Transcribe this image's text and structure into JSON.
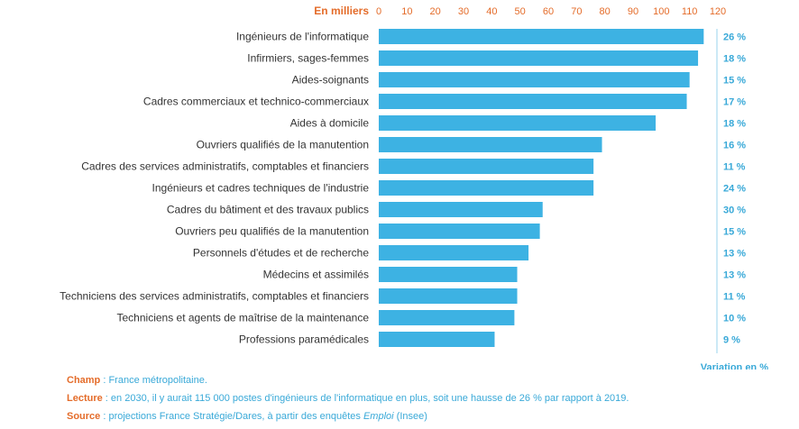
{
  "chart_data": {
    "type": "bar",
    "orientation": "horizontal",
    "unit_label": "En milliers",
    "variation_label": "Variation en %",
    "xlim": [
      0,
      120
    ],
    "xticks": [
      0,
      10,
      20,
      30,
      40,
      50,
      60,
      70,
      80,
      90,
      100,
      110,
      120
    ],
    "categories": [
      "Ingénieurs de l'informatique",
      "Infirmiers, sages-femmes",
      "Aides-soignants",
      "Cadres commerciaux et technico-commerciaux",
      "Aides à domicile",
      "Ouvriers qualifiés de la manutention",
      "Cadres des services administratifs, comptables et financiers",
      "Ingénieurs et cadres techniques de l'industrie",
      "Cadres du bâtiment et des travaux publics",
      "Ouvriers peu qualifiés de la manutention",
      "Personnels d'études et de recherche",
      "Médecins et assimilés",
      "Techniciens des services administratifs, comptables et financiers",
      "Techniciens et agents de maîtrise de la maintenance",
      "Professions paramédicales"
    ],
    "values": [
      115,
      113,
      110,
      109,
      98,
      79,
      76,
      76,
      58,
      57,
      53,
      49,
      49,
      48,
      41
    ],
    "variation": [
      "26 %",
      "18 %",
      "15 %",
      "17 %",
      "18 %",
      "16 %",
      "11 %",
      "24 %",
      "30 %",
      "15 %",
      "13 %",
      "13 %",
      "11 %",
      "10 %",
      "9 %"
    ],
    "bar_color": "#3db2e3",
    "grid": false
  },
  "notes": {
    "champ_label": "Champ",
    "champ_text": "France métropolitaine.",
    "lecture_label": "Lecture",
    "lecture_text": "en 2030, il y aurait 115 000 postes d'ingénieurs de l'informatique en plus, soit une hausse de 26 % par rapport à 2019.",
    "source_label": "Source",
    "source_text_before": "projections France Stratégie/Dares, à partir des enquêtes",
    "source_text_italic": "Emploi",
    "source_text_after": "(Insee)"
  },
  "colors": {
    "accent_orange": "#e46c2a",
    "accent_blue": "#39a9d8",
    "label_text": "#333333"
  }
}
